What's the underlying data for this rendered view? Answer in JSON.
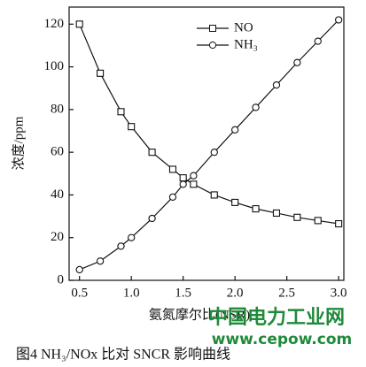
{
  "chart_data": {
    "type": "line",
    "x_label": "氨氮摩尔比(NSR)",
    "y_label": "浓度/ppm",
    "caption": "图4  NH₃/NOx 比对 SNCR 影响曲线",
    "watermark": "中国电力工业网",
    "watermark_url": "www.cepow.com",
    "xlim": [
      0.4,
      3.05
    ],
    "xticks": [
      0.5,
      {
        "value": 1,
        "label": "1.0"
      },
      1.5,
      {
        "value": 2,
        "label": "2.0"
      },
      2.5,
      {
        "value": 3,
        "label": "3.0"
      }
    ],
    "ylim": [
      0,
      128
    ],
    "yticks": [
      0,
      20,
      40,
      60,
      80,
      100,
      120
    ],
    "series": [
      {
        "name": "NO",
        "color": "#111111",
        "marker": "square",
        "x": [
          0.5,
          0.7,
          0.9,
          1.0,
          1.2,
          1.4,
          1.5,
          1.6,
          1.8,
          2.0,
          2.2,
          2.4,
          2.6,
          2.8,
          3.0
        ],
        "values": [
          120,
          97,
          79,
          72,
          60,
          52,
          48,
          45,
          40,
          36.5,
          33.5,
          31.5,
          29.5,
          28,
          26.5
        ]
      },
      {
        "name": "NH₃",
        "color": "#111111",
        "marker": "circle",
        "x": [
          0.5,
          0.7,
          0.9,
          1.0,
          1.2,
          1.4,
          1.5,
          1.6,
          1.8,
          2.0,
          2.2,
          2.4,
          2.6,
          2.8,
          3.0
        ],
        "values": [
          5,
          9,
          16,
          20,
          29,
          39,
          45,
          49,
          60,
          70.5,
          81,
          91.5,
          102,
          112,
          122
        ]
      }
    ]
  }
}
